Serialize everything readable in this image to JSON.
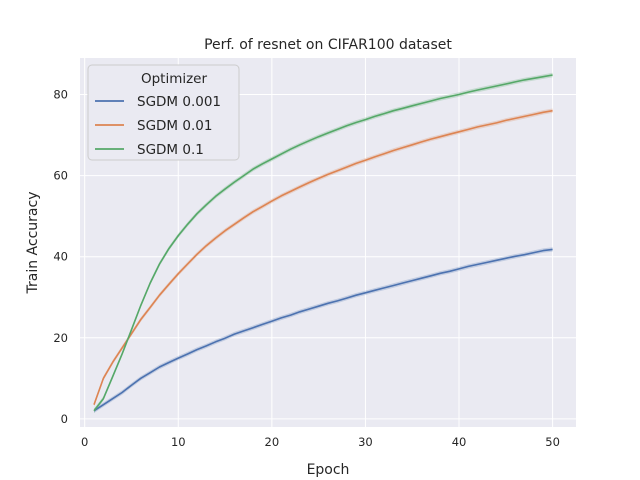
{
  "chart_data": {
    "type": "line",
    "title": "Perf. of resnet on CIFAR100 dataset",
    "xlabel": "Epoch",
    "ylabel": "Train Accuracy",
    "xlim": [
      -0.5,
      52.5
    ],
    "ylim": [
      -2,
      89
    ],
    "xticks": [
      0,
      10,
      20,
      30,
      40,
      50
    ],
    "yticks": [
      0,
      20,
      40,
      60,
      80
    ],
    "grid": true,
    "legend": {
      "title": "Optimizer",
      "placement": "top-left"
    },
    "x": [
      1,
      2,
      3,
      4,
      5,
      6,
      7,
      8,
      9,
      10,
      11,
      12,
      13,
      14,
      15,
      16,
      17,
      18,
      19,
      20,
      21,
      22,
      23,
      24,
      25,
      26,
      27,
      28,
      29,
      30,
      31,
      32,
      33,
      34,
      35,
      36,
      37,
      38,
      39,
      40,
      41,
      42,
      43,
      44,
      45,
      46,
      47,
      48,
      49,
      50
    ],
    "series": [
      {
        "name": "SGDM 0.001",
        "color": "#4c72b0",
        "values": [
          2.0,
          3.5,
          5.0,
          6.5,
          8.3,
          10.0,
          11.4,
          12.8,
          13.9,
          15.0,
          16.0,
          17.1,
          18.0,
          19.0,
          19.9,
          20.9,
          21.7,
          22.5,
          23.3,
          24.1,
          24.9,
          25.6,
          26.4,
          27.1,
          27.8,
          28.5,
          29.1,
          29.8,
          30.5,
          31.1,
          31.7,
          32.3,
          32.9,
          33.5,
          34.1,
          34.7,
          35.3,
          35.9,
          36.4,
          37.0,
          37.6,
          38.1,
          38.6,
          39.1,
          39.6,
          40.1,
          40.5,
          41.0,
          41.5,
          41.8
        ]
      },
      {
        "name": "SGDM 0.01",
        "color": "#dd8452",
        "values": [
          3.5,
          10.0,
          14.0,
          17.5,
          21.0,
          24.5,
          27.5,
          30.5,
          33.2,
          35.8,
          38.2,
          40.6,
          42.7,
          44.6,
          46.4,
          48.0,
          49.6,
          51.1,
          52.4,
          53.7,
          55.0,
          56.1,
          57.2,
          58.3,
          59.3,
          60.3,
          61.2,
          62.1,
          63.0,
          63.8,
          64.6,
          65.4,
          66.2,
          66.9,
          67.6,
          68.3,
          69.0,
          69.6,
          70.2,
          70.8,
          71.4,
          72.0,
          72.5,
          73.0,
          73.6,
          74.1,
          74.6,
          75.1,
          75.6,
          76.0
        ]
      },
      {
        "name": "SGDM 0.1",
        "color": "#55a868",
        "values": [
          2.0,
          5.0,
          10.5,
          16.0,
          22.0,
          28.0,
          33.5,
          38.2,
          42.0,
          45.2,
          48.0,
          50.6,
          52.8,
          54.9,
          56.7,
          58.4,
          60.0,
          61.6,
          62.9,
          64.1,
          65.3,
          66.5,
          67.6,
          68.6,
          69.6,
          70.5,
          71.4,
          72.3,
          73.1,
          73.8,
          74.6,
          75.3,
          76.0,
          76.6,
          77.2,
          77.8,
          78.4,
          79.0,
          79.5,
          80.0,
          80.6,
          81.1,
          81.6,
          82.1,
          82.6,
          83.1,
          83.6,
          84.0,
          84.4,
          84.8
        ]
      }
    ]
  }
}
